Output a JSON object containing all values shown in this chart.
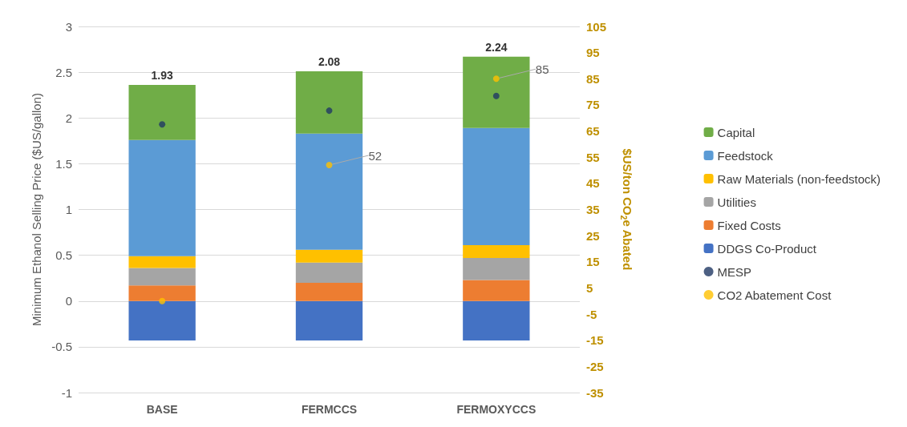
{
  "chart_data": {
    "type": "bar",
    "stacked": true,
    "categories": [
      "BASE",
      "FERMCCS",
      "FERMOXYCCS"
    ],
    "ylabel": "Minimum Ethanol Selling Price ($US/gallon)",
    "y2label": "$US/ton CO$_{2}$e Abated",
    "ylim": [
      -1,
      3
    ],
    "yticks": [
      -1,
      -0.5,
      0,
      0.5,
      1,
      1.5,
      2,
      2.5,
      3
    ],
    "y2lim": [
      -35,
      105
    ],
    "y2ticks": [
      -35,
      -25,
      -15,
      -5,
      5,
      15,
      25,
      35,
      45,
      55,
      65,
      75,
      85,
      95,
      105
    ],
    "grid": "y",
    "legend": "right",
    "marker": "circle",
    "totals": [
      "1.93",
      "2.08",
      "2.24"
    ],
    "series": [
      {
        "name": "DDGS Co-Product",
        "color": "#4472c4",
        "values": [
          -0.43,
          -0.43,
          -0.43
        ]
      },
      {
        "name": "Fixed Costs",
        "color": "#ed7d31",
        "values": [
          0.17,
          0.2,
          0.23
        ]
      },
      {
        "name": "Utilities",
        "color": "#a5a5a5",
        "values": [
          0.19,
          0.22,
          0.24
        ]
      },
      {
        "name": "Raw Materials (non-feedstock)",
        "color": "#ffc000",
        "values": [
          0.13,
          0.14,
          0.14
        ]
      },
      {
        "name": "Feedstock",
        "color": "#5b9bd5",
        "values": [
          1.27,
          1.27,
          1.28
        ]
      },
      {
        "name": "Capital",
        "color": "#70ad47",
        "values": [
          0.6,
          0.68,
          0.78
        ]
      },
      {
        "name": "MESP",
        "type": "scatter",
        "color": "#203864",
        "values": [
          1.93,
          2.08,
          2.24
        ]
      },
      {
        "name": "CO2 Abatement Cost",
        "type": "scatter",
        "axis": "y2",
        "color": "#ffc000",
        "values": [
          0,
          52,
          85
        ],
        "value_labels": [
          null,
          "52",
          "85"
        ]
      }
    ]
  }
}
